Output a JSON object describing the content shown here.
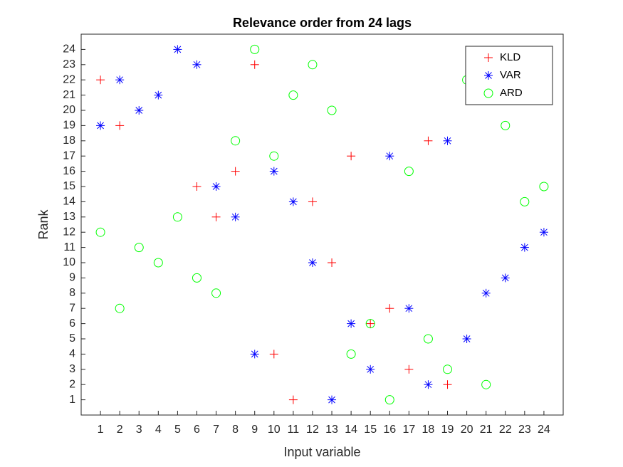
{
  "chart_data": {
    "type": "scatter",
    "title": "Relevance order from 24 lags",
    "x_label": "Input variable",
    "y_label": "Rank",
    "xlim": [
      0,
      25
    ],
    "ylim": [
      0,
      25
    ],
    "xticks": [
      1,
      2,
      3,
      4,
      5,
      6,
      7,
      8,
      9,
      10,
      11,
      12,
      13,
      14,
      15,
      16,
      17,
      18,
      19,
      20,
      21,
      22,
      23,
      24
    ],
    "yticks": [
      1,
      2,
      3,
      4,
      5,
      6,
      7,
      8,
      9,
      10,
      11,
      12,
      13,
      14,
      15,
      16,
      17,
      18,
      19,
      20,
      21,
      22,
      23,
      24
    ],
    "legend": "northeast",
    "grid": false,
    "series": [
      {
        "name": "KLD",
        "color": "#ff0000",
        "marker": "+",
        "x": [
          1,
          2,
          6,
          7,
          8,
          9,
          10,
          11,
          12,
          13,
          14,
          15,
          16,
          17,
          18,
          19
        ],
        "values": [
          22,
          19,
          15,
          13,
          16,
          23,
          4,
          1,
          14,
          10,
          17,
          6,
          7,
          3,
          18,
          2
        ]
      },
      {
        "name": "VAR",
        "color": "#0000ff",
        "marker": "*",
        "x": [
          1,
          2,
          3,
          4,
          5,
          6,
          7,
          8,
          9,
          10,
          11,
          12,
          13,
          14,
          15,
          16,
          17,
          18,
          19,
          20,
          21,
          22,
          23,
          24
        ],
        "values": [
          19,
          22,
          20,
          21,
          24,
          23,
          15,
          13,
          4,
          16,
          14,
          10,
          1,
          6,
          3,
          17,
          7,
          2,
          18,
          5,
          8,
          9,
          11,
          12
        ]
      },
      {
        "name": "ARD",
        "color": "#00ff00",
        "marker": "o",
        "x": [
          1,
          2,
          3,
          4,
          5,
          6,
          7,
          8,
          9,
          10,
          11,
          12,
          13,
          14,
          15,
          16,
          17,
          18,
          19,
          20,
          21,
          22,
          23,
          24
        ],
        "values": [
          12,
          7,
          11,
          10,
          13,
          9,
          8,
          18,
          24,
          17,
          21,
          23,
          20,
          4,
          6,
          1,
          16,
          5,
          3,
          22,
          2,
          19,
          14,
          15
        ]
      }
    ]
  }
}
